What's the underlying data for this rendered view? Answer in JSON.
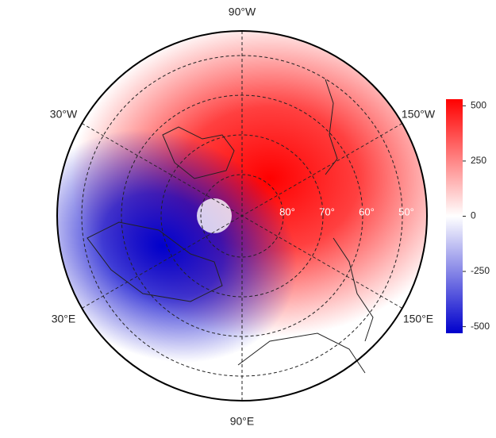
{
  "map": {
    "longitude_labels": {
      "top": "90°W",
      "upper_left": "30°W",
      "upper_right": "150°W",
      "lower_left": "30°E",
      "lower_right": "150°E",
      "bottom": "90°E"
    },
    "latitude_labels": [
      "80°",
      "70°",
      "60°",
      "50°"
    ],
    "colorbar": {
      "lim": [
        -530,
        530
      ],
      "ticks": [
        -500,
        -250,
        0,
        250,
        500
      ],
      "colors": [
        "#0000cc",
        "#ffffff",
        "#ff0000"
      ]
    }
  }
}
